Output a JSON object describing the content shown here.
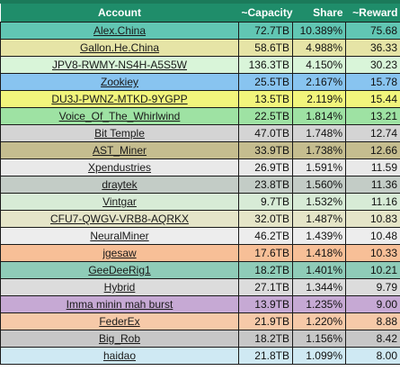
{
  "header": {
    "account": "Account",
    "capacity": "~Capacity",
    "share": "Share",
    "reward": "~Reward"
  },
  "rows": [
    {
      "account": "Alex.China",
      "capacity": "72.7TB",
      "share": "10.389%",
      "reward": "75.68",
      "color": "#61c6b3"
    },
    {
      "account": "Gallon.He.China",
      "capacity": "58.6TB",
      "share": "4.988%",
      "reward": "36.33",
      "color": "#e6e4a6"
    },
    {
      "account": "JPV8-RWMY-NS4H-A5S5W",
      "capacity": "136.3TB",
      "share": "4.150%",
      "reward": "30.23",
      "color": "#d9f5d9"
    },
    {
      "account": "Zookiey",
      "capacity": "25.5TB",
      "share": "2.167%",
      "reward": "15.78",
      "color": "#88c4f0"
    },
    {
      "account": "DU3J-PWNZ-MTKD-9YGPP",
      "capacity": "13.5TB",
      "share": "2.119%",
      "reward": "15.44",
      "color": "#f2f57c"
    },
    {
      "account": "Voice_Of_The_Whirlwind",
      "capacity": "22.5TB",
      "share": "1.814%",
      "reward": "13.21",
      "color": "#9ee2a3"
    },
    {
      "account": "Bit Temple",
      "capacity": "47.0TB",
      "share": "1.748%",
      "reward": "12.74",
      "color": "#d4d4d4"
    },
    {
      "account": "AST_Miner",
      "capacity": "33.9TB",
      "share": "1.738%",
      "reward": "12.66",
      "color": "#c5bd8f"
    },
    {
      "account": "Xpendustries",
      "capacity": "26.9TB",
      "share": "1.591%",
      "reward": "11.59",
      "color": "#e9e9e9"
    },
    {
      "account": "draytek",
      "capacity": "23.8TB",
      "share": "1.560%",
      "reward": "11.36",
      "color": "#c3ccc6"
    },
    {
      "account": "Vintgar",
      "capacity": "9.7TB",
      "share": "1.532%",
      "reward": "11.16",
      "color": "#d7ebd6"
    },
    {
      "account": "CFU7-QWGV-VRB8-AQRKX",
      "capacity": "32.0TB",
      "share": "1.487%",
      "reward": "10.83",
      "color": "#e5e5c8"
    },
    {
      "account": "NeuralMiner",
      "capacity": "46.2TB",
      "share": "1.439%",
      "reward": "10.48",
      "color": "#ededed"
    },
    {
      "account": "jgesaw",
      "capacity": "17.6TB",
      "share": "1.418%",
      "reward": "10.33",
      "color": "#f7bf97"
    },
    {
      "account": "GeeDeeRig1",
      "capacity": "18.2TB",
      "share": "1.401%",
      "reward": "10.21",
      "color": "#8fccb8"
    },
    {
      "account": "Hybrid",
      "capacity": "27.1TB",
      "share": "1.344%",
      "reward": "9.79",
      "color": "#dcdcdc"
    },
    {
      "account": "Imma minin mah burst",
      "capacity": "13.9TB",
      "share": "1.235%",
      "reward": "9.00",
      "color": "#c6a9d4"
    },
    {
      "account": "FederEx",
      "capacity": "21.9TB",
      "share": "1.220%",
      "reward": "8.88",
      "color": "#f6c9a8"
    },
    {
      "account": "Big_Rob",
      "capacity": "18.2TB",
      "share": "1.156%",
      "reward": "8.42",
      "color": "#c7c7c7"
    },
    {
      "account": "haidao",
      "capacity": "21.8TB",
      "share": "1.099%",
      "reward": "8.00",
      "color": "#cfe9f3"
    }
  ]
}
